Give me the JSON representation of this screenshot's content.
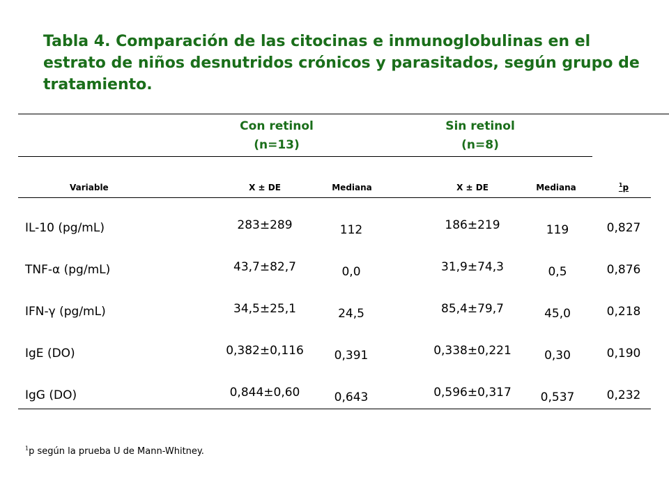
{
  "title": "Tabla 4. Comparación de las citocinas e inmunoglobulinas en el estrato de niños desnutridos crónicos y parasitados, según grupo de tratamiento.",
  "groups": {
    "with_retinol": {
      "name": "Con retinol",
      "n": "(n=13)"
    },
    "without_retinol": {
      "name": "Sin retinol",
      "n": "(n=8)"
    }
  },
  "columns": {
    "variable": "Variable",
    "mean_sd_1": "X ± DE",
    "median_1": "Mediana",
    "mean_sd_2": "X ± DE",
    "median_2": "Mediana",
    "p_sup": "1",
    "p": "p"
  },
  "rows": [
    {
      "variable": "IL-10 (pg/mL)",
      "mean_sd_1": "283±289",
      "median_1": "112",
      "mean_sd_2": "186±219",
      "median_2": "119",
      "p": "0,827"
    },
    {
      "variable": "TNF-α (pg/mL)",
      "mean_sd_1": "43,7±82,7",
      "median_1": "0,0",
      "mean_sd_2": "31,9±74,3",
      "median_2": "0,5",
      "p": "0,876"
    },
    {
      "variable": "IFN-γ (pg/mL)",
      "mean_sd_1": "34,5±25,1",
      "median_1": "24,5",
      "mean_sd_2": "85,4±79,7",
      "median_2": "45,0",
      "p": "0,218"
    },
    {
      "variable": "IgE (DO)",
      "mean_sd_1": "0,382±0,116",
      "median_1": "0,391",
      "mean_sd_2": "0,338±0,221",
      "median_2": "0,30",
      "p": "0,190"
    },
    {
      "variable": "IgG (DO)",
      "mean_sd_1": "0,844±0,60",
      "median_1": "0,643",
      "mean_sd_2": "0,596±0,317",
      "median_2": "0,537",
      "p": "0,232"
    }
  ],
  "footnote": {
    "sup": "1",
    "text": "p según la prueba U de Mann-Whitney."
  },
  "colors": {
    "title": "#1a6e1a",
    "groups": "#1a6e1a",
    "text": "#000000"
  }
}
